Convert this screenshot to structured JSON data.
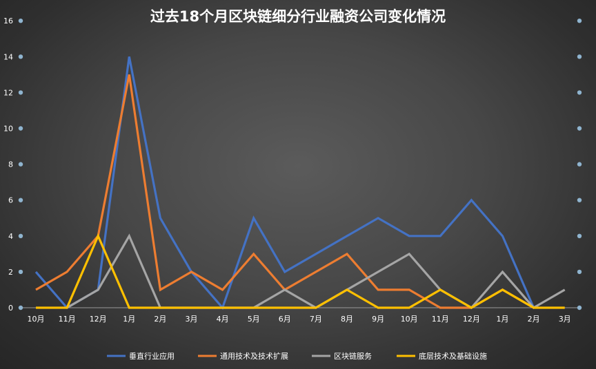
{
  "chart_data": {
    "type": "line",
    "title": "过去18个月区块链细分行业融资公司变化情况",
    "categories": [
      "10月",
      "11月",
      "12月",
      "1月",
      "2月",
      "3月",
      "4月",
      "5月",
      "6月",
      "7月",
      "8月",
      "9月",
      "10月",
      "11月",
      "12月",
      "1月",
      "2月",
      "3月"
    ],
    "ylim": [
      0,
      16
    ],
    "yticks": [
      "0",
      "2",
      "4",
      "6",
      "8",
      "10",
      "12",
      "14",
      "16"
    ],
    "grid": false,
    "legend_position": "bottom",
    "series": [
      {
        "name": "垂直行业应用",
        "color": "#4472c4",
        "values": [
          2,
          0,
          1,
          14,
          5,
          2,
          0,
          5,
          2,
          3,
          4,
          5,
          4,
          4,
          6,
          4,
          0,
          null
        ]
      },
      {
        "name": "通用技术及技术扩展",
        "color": "#ed7d31",
        "values": [
          1,
          2,
          4,
          13,
          1,
          2,
          1,
          3,
          1,
          2,
          3,
          1,
          1,
          0,
          0,
          1,
          0,
          null
        ]
      },
      {
        "name": "区块链服务",
        "color": "#a5a5a5",
        "values": [
          null,
          0,
          1,
          4,
          0,
          0,
          0,
          0,
          1,
          0,
          1,
          2,
          3,
          1,
          0,
          2,
          0,
          1
        ]
      },
      {
        "name": "底层技术及基础设施",
        "color": "#ffc000",
        "values": [
          0,
          0,
          4,
          0,
          0,
          0,
          0,
          0,
          0,
          0,
          1,
          0,
          0,
          1,
          0,
          1,
          0,
          0
        ]
      }
    ]
  }
}
